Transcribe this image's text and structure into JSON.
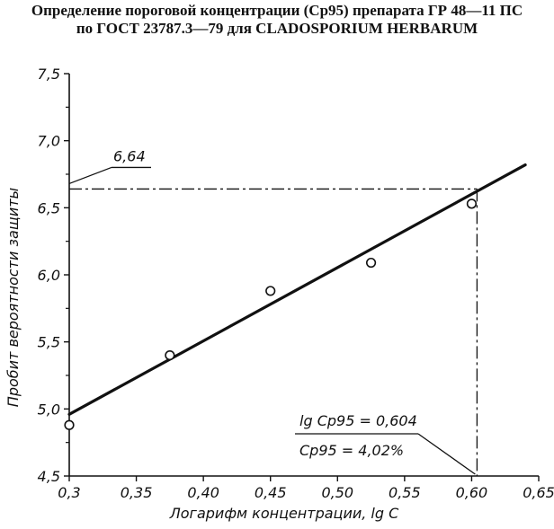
{
  "chart_data": {
    "type": "scatter",
    "title_lines": [
      "Определение пороговой концентрации (Ср95) препарата ГР 48—11 ПС",
      "по ГОСТ 23787.3—79 для CLADOSPORIUM HERBARUM"
    ],
    "xlabel": "Логарифм концентрации, lg C",
    "ylabel": "Пробит  вероятности  защиты",
    "xlim": [
      0.3,
      0.65
    ],
    "ylim": [
      4.5,
      7.5
    ],
    "x_ticks": [
      0.3,
      0.35,
      0.4,
      0.45,
      0.5,
      0.55,
      0.6,
      0.65
    ],
    "x_tick_labels": [
      "0,3",
      "0,35",
      "0,40",
      "0,45",
      "0,50",
      "0,55",
      "0,60",
      "0,65"
    ],
    "y_ticks": [
      4.5,
      5.0,
      5.5,
      6.0,
      6.5,
      7.0,
      7.5
    ],
    "y_tick_labels": [
      "4,5",
      "5,0",
      "5,5",
      "6,0",
      "6,5",
      "7,0",
      "7,5"
    ],
    "points": [
      {
        "x": 0.3,
        "y": 4.88
      },
      {
        "x": 0.375,
        "y": 5.4
      },
      {
        "x": 0.45,
        "y": 5.88
      },
      {
        "x": 0.525,
        "y": 6.09
      },
      {
        "x": 0.6,
        "y": 6.53
      }
    ],
    "fit_line": {
      "x": [
        0.3,
        0.64
      ],
      "y": [
        4.96,
        6.82
      ]
    },
    "threshold": {
      "x": 0.604,
      "y": 6.64
    },
    "annotations": {
      "y_value": "6,64",
      "lg_c": "lg Cp95 = 0,604",
      "c_value": "Cp95 = 4,02%"
    },
    "grid": false
  }
}
